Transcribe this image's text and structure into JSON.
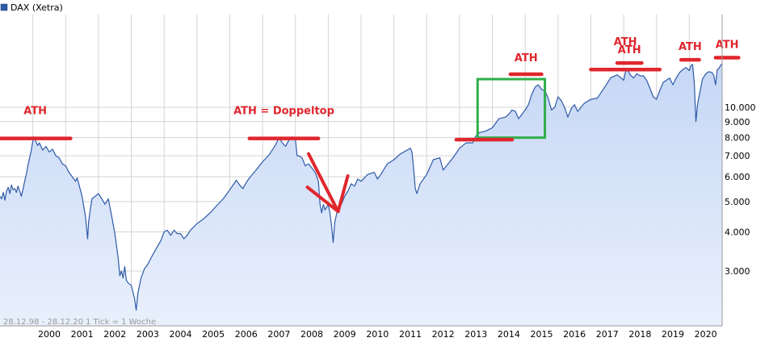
{
  "legend": {
    "label": "DAX (Xetra)",
    "swatch_color": "#2e5aa8"
  },
  "footer": {
    "range": "28.12.98 - 28.12.20",
    "tick": "1 Tick = 1 Woche"
  },
  "colors": {
    "line": "#2e5aa8",
    "area_top": "#c6d7f5",
    "area_bottom": "#e9f0fc",
    "grid": "#d4d4d4",
    "annotation_red": "#e0262d",
    "highlight_green": "#2fae4a"
  },
  "chart_data": {
    "type": "line",
    "title": "",
    "xlabel": "",
    "ylabel": "",
    "y_scale": "log",
    "xlim": [
      1999.0,
      2021.0
    ],
    "ylim": [
      2150,
      15500
    ],
    "grid": true,
    "legend_position": "top-left",
    "x_tick_labels": [
      "2000",
      "2001",
      "2002",
      "2003",
      "2004",
      "2005",
      "2006",
      "2007",
      "2008",
      "2009",
      "2010",
      "2011",
      "2012",
      "2013",
      "2014",
      "2015",
      "2016",
      "2017",
      "2018",
      "2019",
      "2020"
    ],
    "y_tick_labels": [
      "3.000",
      "4.000",
      "5.000",
      "6.000",
      "7.000",
      "8.000",
      "9.000",
      "10.000"
    ],
    "series": [
      {
        "x": [
          1999.0,
          1999.05,
          1999.1,
          1999.15,
          1999.2,
          1999.25,
          1999.3,
          1999.35,
          1999.4,
          1999.45,
          1999.5,
          1999.55,
          1999.6,
          1999.65,
          1999.7,
          1999.75,
          1999.8,
          1999.85,
          1999.9,
          1999.95,
          2000.0,
          2000.03,
          2000.1,
          2000.15,
          2000.2,
          2000.3,
          2000.4,
          2000.5,
          2000.6,
          2000.7,
          2000.8,
          2000.9,
          2001.0,
          2001.1,
          2001.2,
          2001.3,
          2001.35,
          2001.4,
          2001.5,
          2001.6,
          2001.67,
          2001.7,
          2001.75,
          2001.8,
          2001.9,
          2002.0,
          2002.1,
          2002.2,
          2002.3,
          2002.4,
          2002.5,
          2002.55,
          2002.6,
          2002.65,
          2002.7,
          2002.75,
          2002.8,
          2002.85,
          2002.9,
          2003.0,
          2003.1,
          2003.15,
          2003.2,
          2003.3,
          2003.4,
          2003.5,
          2003.6,
          2003.7,
          2003.8,
          2003.9,
          2004.0,
          2004.1,
          2004.2,
          2004.3,
          2004.4,
          2004.5,
          2004.6,
          2004.7,
          2004.8,
          2004.9,
          2005.0,
          2005.2,
          2005.4,
          2005.6,
          2005.8,
          2006.0,
          2006.2,
          2006.3,
          2006.4,
          2006.5,
          2006.6,
          2006.8,
          2007.0,
          2007.2,
          2007.4,
          2007.5,
          2007.6,
          2007.7,
          2007.8,
          2007.9,
          2008.0,
          2008.05,
          2008.1,
          2008.2,
          2008.3,
          2008.4,
          2008.5,
          2008.6,
          2008.7,
          2008.75,
          2008.8,
          2008.85,
          2008.9,
          2009.0,
          2009.05,
          2009.1,
          2009.15,
          2009.2,
          2009.3,
          2009.4,
          2009.5,
          2009.6,
          2009.7,
          2009.8,
          2009.9,
          2010.0,
          2010.2,
          2010.4,
          2010.5,
          2010.6,
          2010.8,
          2011.0,
          2011.2,
          2011.4,
          2011.5,
          2011.55,
          2011.6,
          2011.65,
          2011.7,
          2011.8,
          2011.9,
          2012.0,
          2012.2,
          2012.4,
          2012.5,
          2012.6,
          2012.8,
          2013.0,
          2013.2,
          2013.4,
          2013.5,
          2013.6,
          2013.8,
          2014.0,
          2014.2,
          2014.4,
          2014.5,
          2014.6,
          2014.7,
          2014.8,
          2014.9,
          2015.0,
          2015.1,
          2015.2,
          2015.3,
          2015.4,
          2015.5,
          2015.6,
          2015.7,
          2015.8,
          2015.9,
          2016.0,
          2016.1,
          2016.2,
          2016.3,
          2016.4,
          2016.5,
          2016.6,
          2016.8,
          2017.0,
          2017.2,
          2017.4,
          2017.6,
          2017.8,
          2018.0,
          2018.05,
          2018.1,
          2018.2,
          2018.3,
          2018.4,
          2018.5,
          2018.6,
          2018.7,
          2018.8,
          2018.9,
          2019.0,
          2019.1,
          2019.2,
          2019.3,
          2019.4,
          2019.5,
          2019.6,
          2019.7,
          2019.8,
          2019.9,
          2020.0,
          2020.05,
          2020.1,
          2020.15,
          2020.2,
          2020.25,
          2020.3,
          2020.4,
          2020.5,
          2020.6,
          2020.7,
          2020.75,
          2020.8,
          2020.85,
          2020.9,
          2020.95,
          2021.0
        ],
        "values": [
          5200,
          5100,
          5350,
          5050,
          5400,
          5550,
          5300,
          5650,
          5450,
          5500,
          5350,
          5600,
          5400,
          5200,
          5450,
          5800,
          6100,
          6500,
          6900,
          7250,
          7800,
          8050,
          7750,
          7550,
          7700,
          7300,
          7500,
          7200,
          7350,
          7000,
          6900,
          6600,
          6500,
          6200,
          6000,
          5800,
          5950,
          5700,
          5200,
          4500,
          3800,
          4300,
          4700,
          5100,
          5200,
          5300,
          5100,
          4900,
          5100,
          4500,
          3950,
          3600,
          3300,
          2900,
          3000,
          2850,
          3100,
          2800,
          2750,
          2700,
          2450,
          2250,
          2550,
          2850,
          3050,
          3150,
          3300,
          3450,
          3600,
          3750,
          4000,
          4050,
          3900,
          4050,
          3950,
          3950,
          3800,
          3900,
          4050,
          4150,
          4250,
          4400,
          4600,
          4850,
          5100,
          5450,
          5850,
          5650,
          5500,
          5750,
          5950,
          6300,
          6700,
          7050,
          7600,
          8000,
          7700,
          7500,
          7850,
          8050,
          7900,
          7000,
          7000,
          6900,
          6500,
          6600,
          6400,
          6200,
          5800,
          4900,
          4600,
          4900,
          4700,
          4900,
          4600,
          4200,
          3700,
          4300,
          4800,
          4900,
          5200,
          5400,
          5700,
          5600,
          5900,
          5800,
          6100,
          6200,
          5900,
          6100,
          6600,
          6800,
          7100,
          7300,
          7400,
          7200,
          6400,
          5500,
          5300,
          5700,
          5900,
          6100,
          6800,
          6900,
          6300,
          6500,
          6900,
          7400,
          7700,
          7700,
          8100,
          8300,
          8400,
          8600,
          9200,
          9300,
          9500,
          9800,
          9700,
          9200,
          9500,
          9800,
          10200,
          11000,
          11600,
          11800,
          11400,
          11300,
          10700,
          9800,
          10000,
          10800,
          10500,
          10000,
          9300,
          9900,
          10200,
          9700,
          10300,
          10600,
          10700,
          11500,
          12400,
          12700,
          12200,
          12900,
          13300,
          12700,
          12400,
          12800,
          12600,
          12600,
          12200,
          11500,
          10800,
          10600,
          11300,
          12000,
          12200,
          12400,
          11800,
          12400,
          12900,
          13200,
          13400,
          13100,
          13600,
          13700,
          12000,
          9000,
          10200,
          10900,
          12300,
          12800,
          13000,
          12900,
          12600,
          11800,
          13200,
          13300,
          13600,
          13800
        ]
      }
    ],
    "annotations": [
      {
        "label": "ATH",
        "level": 7950,
        "x_range": [
          1999.0,
          2001.15
        ]
      },
      {
        "label": "ATH = Doppeltop",
        "level": 7950,
        "x_range": [
          2006.6,
          2008.7
        ]
      },
      {
        "label": "",
        "level": 7880,
        "x_range": [
          2012.9,
          2014.6
        ]
      },
      {
        "label": "ATH",
        "level": 12750,
        "x_range": [
          2014.55,
          2015.5
        ]
      },
      {
        "label": "ATH",
        "level": 13200,
        "x_range": [
          2017.0,
          2019.1
        ]
      },
      {
        "label": "ATH",
        "level": 13850,
        "x_range": [
          2017.8,
          2018.55
        ]
      },
      {
        "label": "ATH",
        "level": 14180,
        "x_range": [
          2019.75,
          2020.3
        ]
      },
      {
        "label": "ATH",
        "level": 14400,
        "x_range": [
          2020.8,
          2021.5
        ]
      }
    ],
    "highlight_box": {
      "x_range": [
        2013.55,
        2015.6
      ],
      "y_range": [
        8000,
        12300
      ]
    },
    "arrow": {
      "from": [
        2008.4,
        7100
      ],
      "to": [
        2009.3,
        4650
      ]
    }
  }
}
